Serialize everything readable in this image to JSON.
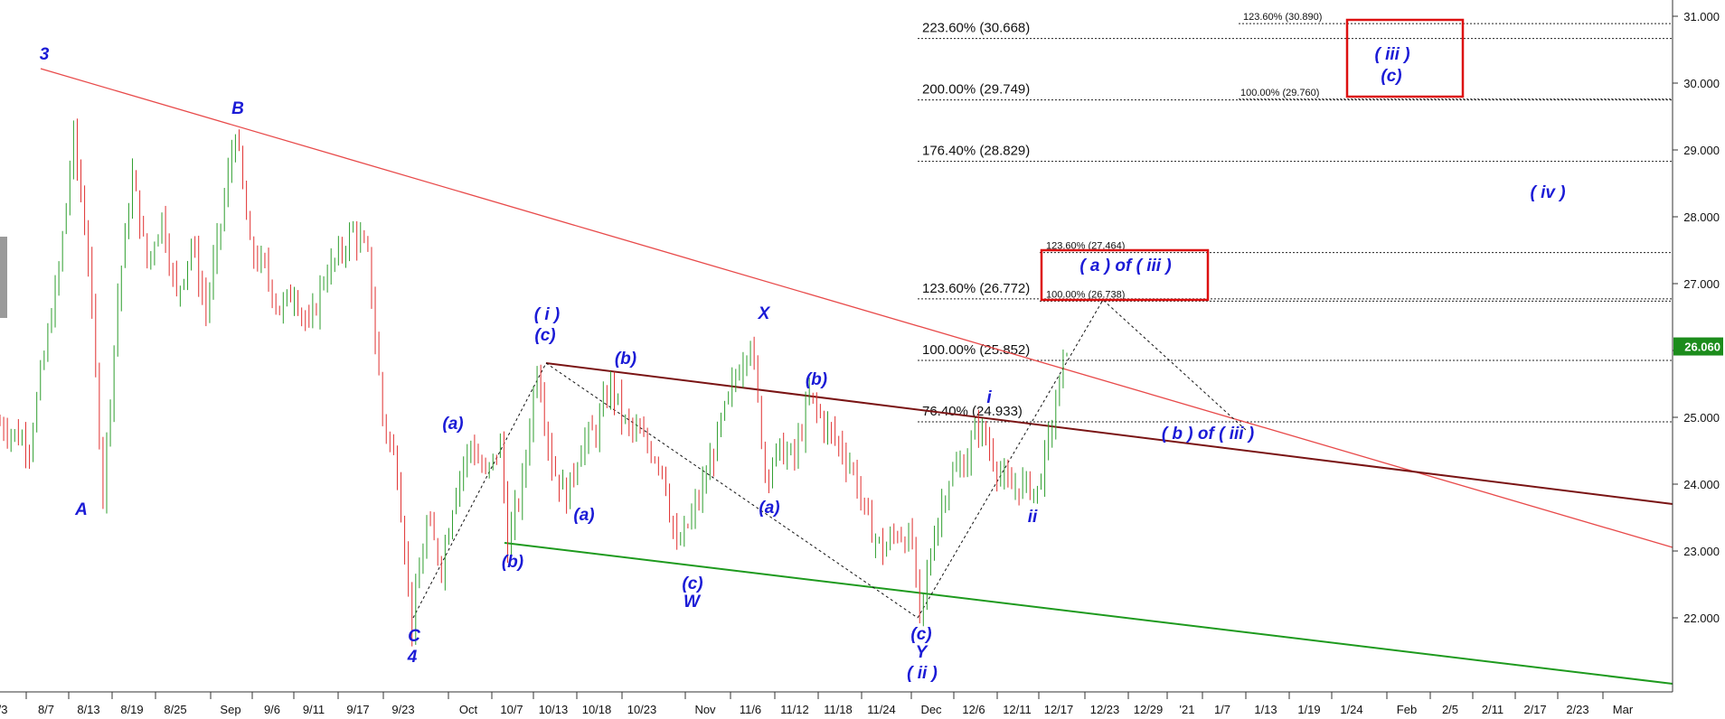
{
  "chart_data": {
    "type": "line",
    "title": "",
    "xlabel": "",
    "ylabel": "",
    "ylim": [
      20.9,
      31.3
    ],
    "grid": false,
    "x_ticks": [
      "/3",
      "8/7",
      "8/13",
      "8/19",
      "8/25",
      "Sep",
      "9/6",
      "9/11",
      "9/17",
      "9/23",
      "Oct",
      "10/7",
      "10/13",
      "10/18",
      "10/23",
      "Nov",
      "11/6",
      "11/12",
      "11/18",
      "11/24",
      "Dec",
      "12/6",
      "12/11",
      "12/17",
      "12/23",
      "12/29",
      "'21",
      "1/7",
      "1/13",
      "1/19",
      "1/24",
      "Feb",
      "2/5",
      "2/11",
      "2/17",
      "2/23",
      "Mar"
    ],
    "y_ticks": [
      "22.000",
      "23.000",
      "24.000",
      "25.000",
      "26.000",
      "27.000",
      "28.000",
      "29.000",
      "30.000",
      "31.000"
    ],
    "last_price": "26.060",
    "colors": {
      "bull": "#2e9e2e",
      "bear": "#e03030",
      "wave_label": "#1b1bd6",
      "resistance_line": "#e84a4a",
      "channel_upper": "#7a1414",
      "channel_lower": "#1e9a1e",
      "box": "#dd1111",
      "price_tag": "#1c8c1c"
    },
    "price_path": [
      [
        0,
        24.9
      ],
      [
        4,
        24.6
      ],
      [
        8,
        27.2
      ],
      [
        10,
        29.2
      ],
      [
        12,
        27.4
      ],
      [
        14,
        23.9
      ],
      [
        16,
        26.8
      ],
      [
        18,
        28.6
      ],
      [
        20,
        27.3
      ],
      [
        22,
        28.0
      ],
      [
        24,
        26.8
      ],
      [
        26,
        27.6
      ],
      [
        28,
        26.6
      ],
      [
        30,
        27.9
      ],
      [
        32,
        29.3
      ],
      [
        34,
        27.5
      ],
      [
        36,
        27.2
      ],
      [
        38,
        26.6
      ],
      [
        40,
        26.9
      ],
      [
        42,
        26.3
      ],
      [
        44,
        27.1
      ],
      [
        46,
        27.4
      ],
      [
        48,
        27.8
      ],
      [
        50,
        27.4
      ],
      [
        52,
        25.0
      ],
      [
        54,
        24.2
      ],
      [
        56,
        21.9
      ],
      [
        58,
        23.4
      ],
      [
        60,
        22.8
      ],
      [
        62,
        24.0
      ],
      [
        64,
        24.6
      ],
      [
        66,
        24.1
      ],
      [
        68,
        24.6
      ],
      [
        69,
        23.1
      ],
      [
        71,
        24.0
      ],
      [
        73,
        25.8
      ],
      [
        75,
        24.3
      ],
      [
        77,
        23.8
      ],
      [
        79,
        24.6
      ],
      [
        81,
        24.8
      ],
      [
        83,
        25.5
      ],
      [
        85,
        24.9
      ],
      [
        87,
        24.7
      ],
      [
        90,
        24.3
      ],
      [
        92,
        23.0
      ],
      [
        94,
        23.5
      ],
      [
        96,
        24.1
      ],
      [
        98,
        24.9
      ],
      [
        100,
        25.6
      ],
      [
        102,
        26.2
      ],
      [
        104,
        24.2
      ],
      [
        106,
        24.5
      ],
      [
        108,
        24.4
      ],
      [
        110,
        25.3
      ],
      [
        112,
        24.9
      ],
      [
        114,
        24.6
      ],
      [
        116,
        24.2
      ],
      [
        118,
        23.4
      ],
      [
        120,
        23.0
      ],
      [
        122,
        23.3
      ],
      [
        124,
        23.1
      ],
      [
        125,
        21.95
      ],
      [
        127,
        23.3
      ],
      [
        129,
        24.1
      ],
      [
        131,
        24.3
      ],
      [
        133,
        24.9
      ],
      [
        135,
        24.4
      ],
      [
        137,
        23.9
      ],
      [
        139,
        24.0
      ],
      [
        141,
        23.9
      ],
      [
        143,
        24.9
      ],
      [
        145,
        26.1
      ]
    ],
    "price_x_range": [
      0,
      145
    ],
    "fib_levels": [
      {
        "label": "223.60% (30.668)",
        "value": 30.668
      },
      {
        "label": "200.00% (29.749)",
        "value": 29.749
      },
      {
        "label": "176.40% (28.829)",
        "value": 28.829
      },
      {
        "label": "123.60% (26.772)",
        "value": 26.772
      },
      {
        "label": "100.00% (25.852)",
        "value": 25.852
      },
      {
        "label": "76.40% (24.933)",
        "value": 24.933
      }
    ],
    "fib_small_levels": [
      {
        "label": "123.60% (30.890)",
        "value": 30.89
      },
      {
        "label": "100.00% (29.760)",
        "value": 29.76
      },
      {
        "label": "123.60% (27.464)",
        "value": 27.464
      },
      {
        "label": "100.00% (26.738)",
        "value": 26.738
      }
    ],
    "wave_labels": [
      "3",
      "A",
      "B",
      "C",
      "4",
      "(a)",
      "(b)",
      "( i )",
      "(c)",
      "(b)",
      "(a)",
      "(c)",
      "W",
      "X",
      "(a)",
      "(b)",
      "(c)",
      "Y",
      "( ii )",
      "i",
      "ii",
      "( a ) of ( iii )",
      "( b ) of ( iii )",
      "( iii )",
      "(c)",
      "( iv )"
    ]
  }
}
